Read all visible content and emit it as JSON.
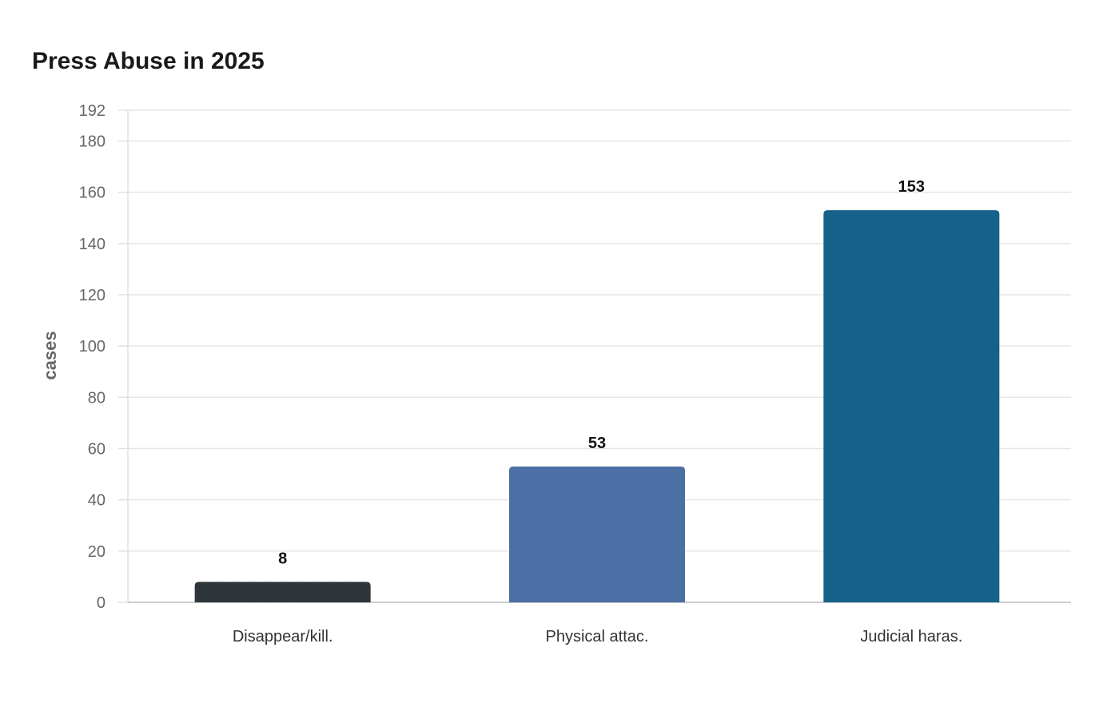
{
  "chart_data": {
    "type": "bar",
    "title": "Press Abuse in 2025",
    "xlabel": "",
    "ylabel": "cases",
    "categories": [
      "Disappear/kill.",
      "Physical attac.",
      "Judicial haras."
    ],
    "values": [
      8,
      53,
      153
    ],
    "colors": [
      "#2b3236",
      "#4c6fa5",
      "#166189"
    ],
    "ylim": [
      0,
      192
    ],
    "yticks": [
      0,
      20,
      40,
      60,
      80,
      100,
      120,
      140,
      160,
      180,
      192
    ],
    "grid": true,
    "legend": "none"
  }
}
